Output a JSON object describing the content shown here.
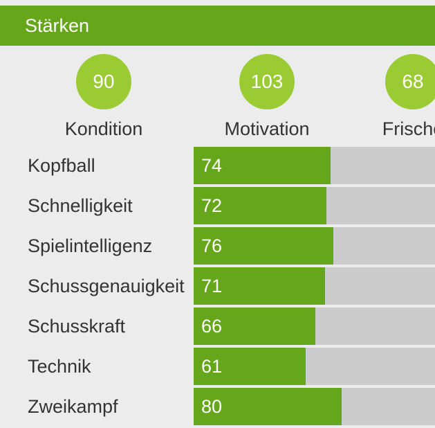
{
  "header": {
    "title": "Stärken"
  },
  "stats": [
    {
      "label": "Kondition",
      "value": "90"
    },
    {
      "label": "Motivation",
      "value": "103"
    },
    {
      "label": "Frische",
      "value": "68"
    }
  ],
  "attributes": [
    {
      "label": "Kopfball",
      "value": 74,
      "level_fraction": 0.567
    },
    {
      "label": "Schnelligkeit",
      "value": 72,
      "level_fraction": 0.55
    },
    {
      "label": "Spielintelligenz",
      "value": 76,
      "level_fraction": 0.579
    },
    {
      "label": "Schussgenauigkeit",
      "value": 71,
      "level_fraction": 0.544
    },
    {
      "label": "Schusskraft",
      "value": 66,
      "level_fraction": 0.504
    },
    {
      "label": "Technik",
      "value": 61,
      "level_fraction": 0.464
    },
    {
      "label": "Zweikampf",
      "value": 80,
      "level_fraction": 0.613
    }
  ],
  "colors": {
    "accent": "#65a61a",
    "circle": "#9acb33",
    "track": "#cccccc",
    "background": "#ececec",
    "text": "#333333"
  }
}
